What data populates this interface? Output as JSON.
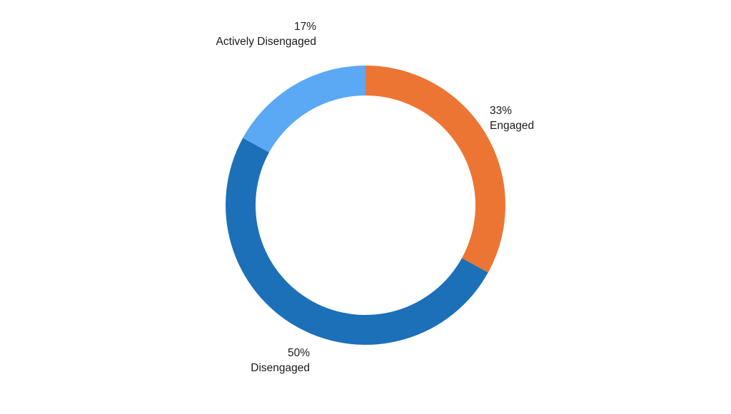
{
  "chart_data": {
    "type": "pie",
    "style": "donut",
    "slices": [
      {
        "label": "Engaged",
        "value": 33,
        "value_text": "33%",
        "color": "#ED7533"
      },
      {
        "label": "Disengaged",
        "value": 50,
        "value_text": "50%",
        "color": "#1C70B8"
      },
      {
        "label": "Actively Disengaged",
        "value": 17,
        "value_text": "17%",
        "color": "#5BA8F5"
      }
    ],
    "start_angle": "top",
    "direction": "clockwise",
    "legend": "none"
  }
}
